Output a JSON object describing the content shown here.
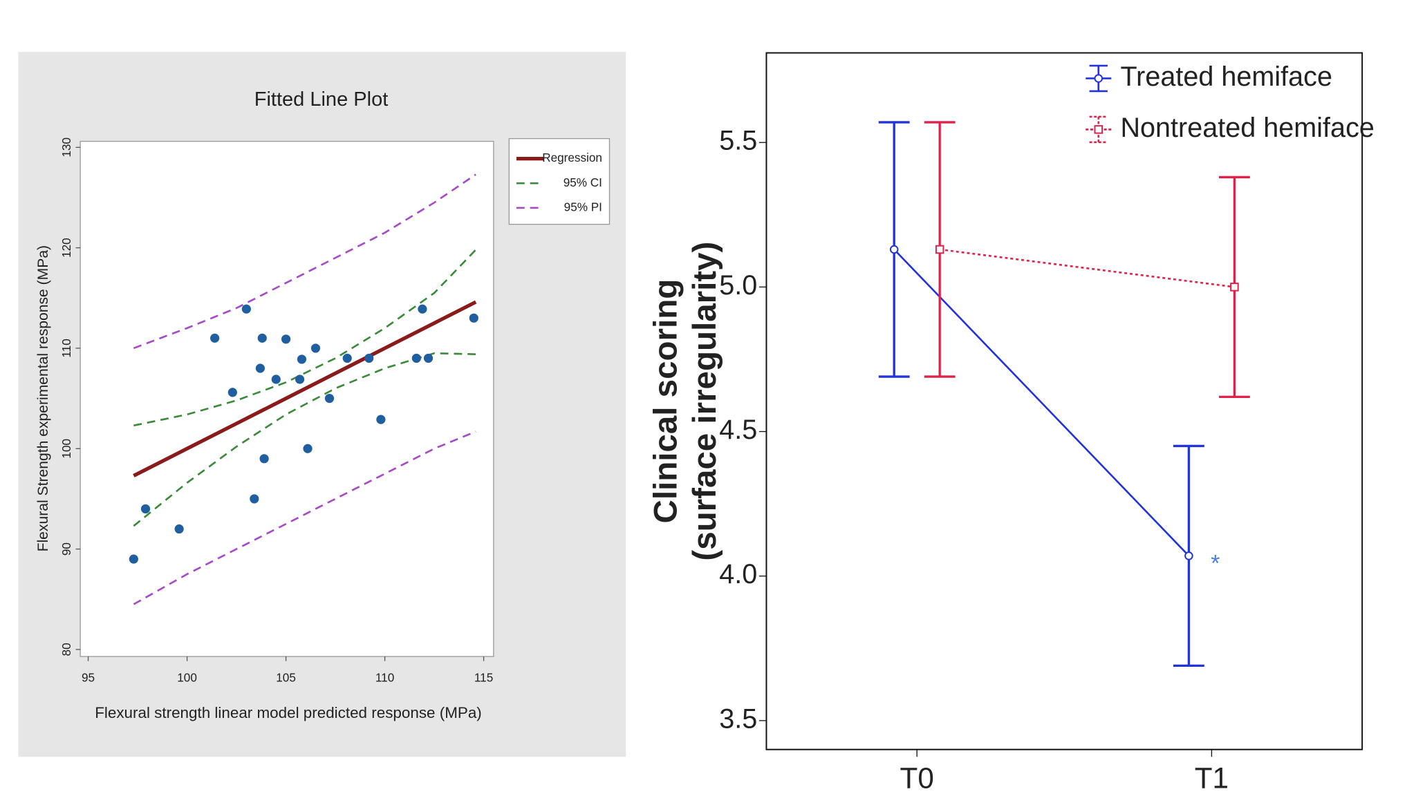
{
  "chart_data": [
    {
      "type": "scatter",
      "title": "Fitted Line Plot",
      "x_label": "Flexural strength linear model predicted response (MPa)",
      "y_label": "Flexural Strength experimental response (MPa)",
      "x": [
        97.3,
        97.9,
        99.6,
        101.4,
        102.3,
        103.0,
        103.4,
        103.7,
        103.8,
        103.9,
        104.5,
        105.0,
        105.8,
        105.7,
        106.1,
        106.5,
        107.2,
        108.1,
        109.2,
        109.8,
        111.6,
        111.9,
        112.2,
        114.5
      ],
      "y": [
        89,
        94,
        92,
        111,
        105.6,
        113.9,
        95,
        108,
        111,
        99,
        106.9,
        110.9,
        108.9,
        106.9,
        100,
        110,
        105,
        109,
        109,
        102.9,
        109,
        113.9,
        109,
        113
      ],
      "point_color": "#1f5fa0",
      "fit": {
        "x": [
          97.3,
          100,
          102.5,
          105,
          107.5,
          110,
          112.5,
          114.6
        ],
        "series": [
          {
            "name": "Regression",
            "color": "#8b1a1a",
            "dash": "solid",
            "values": [
              97.3,
              100,
              102.5,
              105,
              107.5,
              110,
              112.5,
              114.6
            ]
          },
          {
            "name": "95% CI",
            "color": "#3a8a3a",
            "dash": "dashed",
            "values": [
              102.3,
              103.4,
              104.8,
              106.6,
              109.0,
              112.0,
              115.5,
              119.8
            ]
          },
          {
            "color": "#3a8a3a",
            "dash": "dashed",
            "values": [
              92.3,
              96.6,
              100.2,
              103.4,
              106.0,
              108.0,
              109.5,
              109.4
            ]
          },
          {
            "name": "95% PI",
            "color": "#a64ac9",
            "dash": "dashed",
            "values": [
              110,
              112,
              114,
              116.5,
              119,
              121.5,
              124.5,
              127.3
            ]
          },
          {
            "color": "#a64ac9",
            "dash": "dashed",
            "values": [
              84.5,
              87.5,
              90,
              92.5,
              95,
              97.5,
              100,
              101.7
            ]
          }
        ]
      },
      "xlim": [
        94.6,
        115.5
      ],
      "ylim": [
        79.3,
        130.6
      ],
      "xticks": [
        95,
        100,
        105,
        110,
        115
      ],
      "yticks": [
        80,
        90,
        100,
        110,
        120,
        130
      ],
      "legend": "upper-right"
    },
    {
      "type": "line",
      "y_label": [
        "Clinical scoring",
        "(surface irregularity)"
      ],
      "categories": [
        "T0",
        "T1"
      ],
      "series": [
        {
          "name": "Treated hemiface",
          "color": "#2233dd",
          "dash": "solid",
          "marker": "circle",
          "values": [
            5.13,
            4.07
          ],
          "errors": [
            0.44,
            0.38
          ]
        },
        {
          "name": "Nontreated hemiface",
          "color": "#e0224a",
          "dash": "dotted",
          "marker": "square",
          "values": [
            5.13,
            5.0
          ],
          "errors": [
            0.44,
            0.38
          ]
        }
      ],
      "annotation": "*",
      "ylim": [
        3.4,
        5.81
      ],
      "yticks": [
        3.5,
        {
          "value": 4.0,
          "label": "4.0"
        },
        4.5,
        {
          "value": 5.0,
          "label": "5.0"
        },
        5.5
      ],
      "legend": "upper-right"
    }
  ]
}
